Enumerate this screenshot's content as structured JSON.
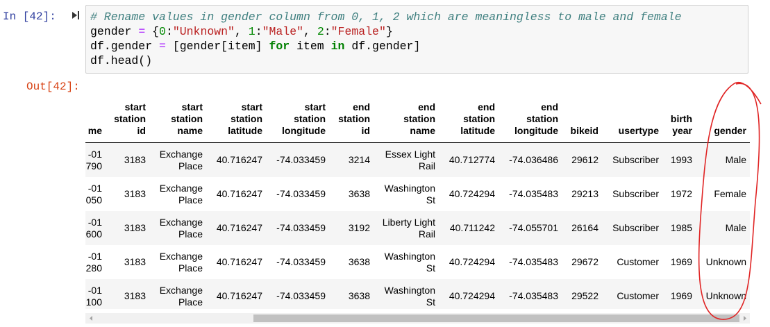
{
  "input_prompt": "In [42]:",
  "code": {
    "lines": [
      "# Rename values in gender column from 0, 1, 2 which are meaningless to male and female",
      "gender = {0:\"Unknown\", 1:\"Male\", 2:\"Female\"}",
      "df.gender = [gender[item] for item in df.gender]",
      "df.head()"
    ]
  },
  "output_prompt": "Out[42]:",
  "table": {
    "columns": [
      "me",
      "start station id",
      "start station name",
      "start station latitude",
      "start station longitude",
      "end station id",
      "end station name",
      "end station latitude",
      "end station longitude",
      "bikeid",
      "usertype",
      "birth year",
      "gender"
    ],
    "rows": [
      [
        "-01 790",
        "3183",
        "Exchange Place",
        "40.716247",
        "-74.033459",
        "3214",
        "Essex Light Rail",
        "40.712774",
        "-74.036486",
        "29612",
        "Subscriber",
        "1993",
        "Male"
      ],
      [
        "-01 050",
        "3183",
        "Exchange Place",
        "40.716247",
        "-74.033459",
        "3638",
        "Washington St",
        "40.724294",
        "-74.035483",
        "29213",
        "Subscriber",
        "1972",
        "Female"
      ],
      [
        "-01 600",
        "3183",
        "Exchange Place",
        "40.716247",
        "-74.033459",
        "3192",
        "Liberty Light Rail",
        "40.711242",
        "-74.055701",
        "26164",
        "Subscriber",
        "1985",
        "Male"
      ],
      [
        "-01 280",
        "3183",
        "Exchange Place",
        "40.716247",
        "-74.033459",
        "3638",
        "Washington St",
        "40.724294",
        "-74.035483",
        "29672",
        "Customer",
        "1969",
        "Unknown"
      ],
      [
        "-01 100",
        "3183",
        "Exchange Place",
        "40.716247",
        "-74.033459",
        "3638",
        "Washington St",
        "40.724294",
        "-74.035483",
        "29522",
        "Customer",
        "1969",
        "Unknown"
      ]
    ]
  }
}
